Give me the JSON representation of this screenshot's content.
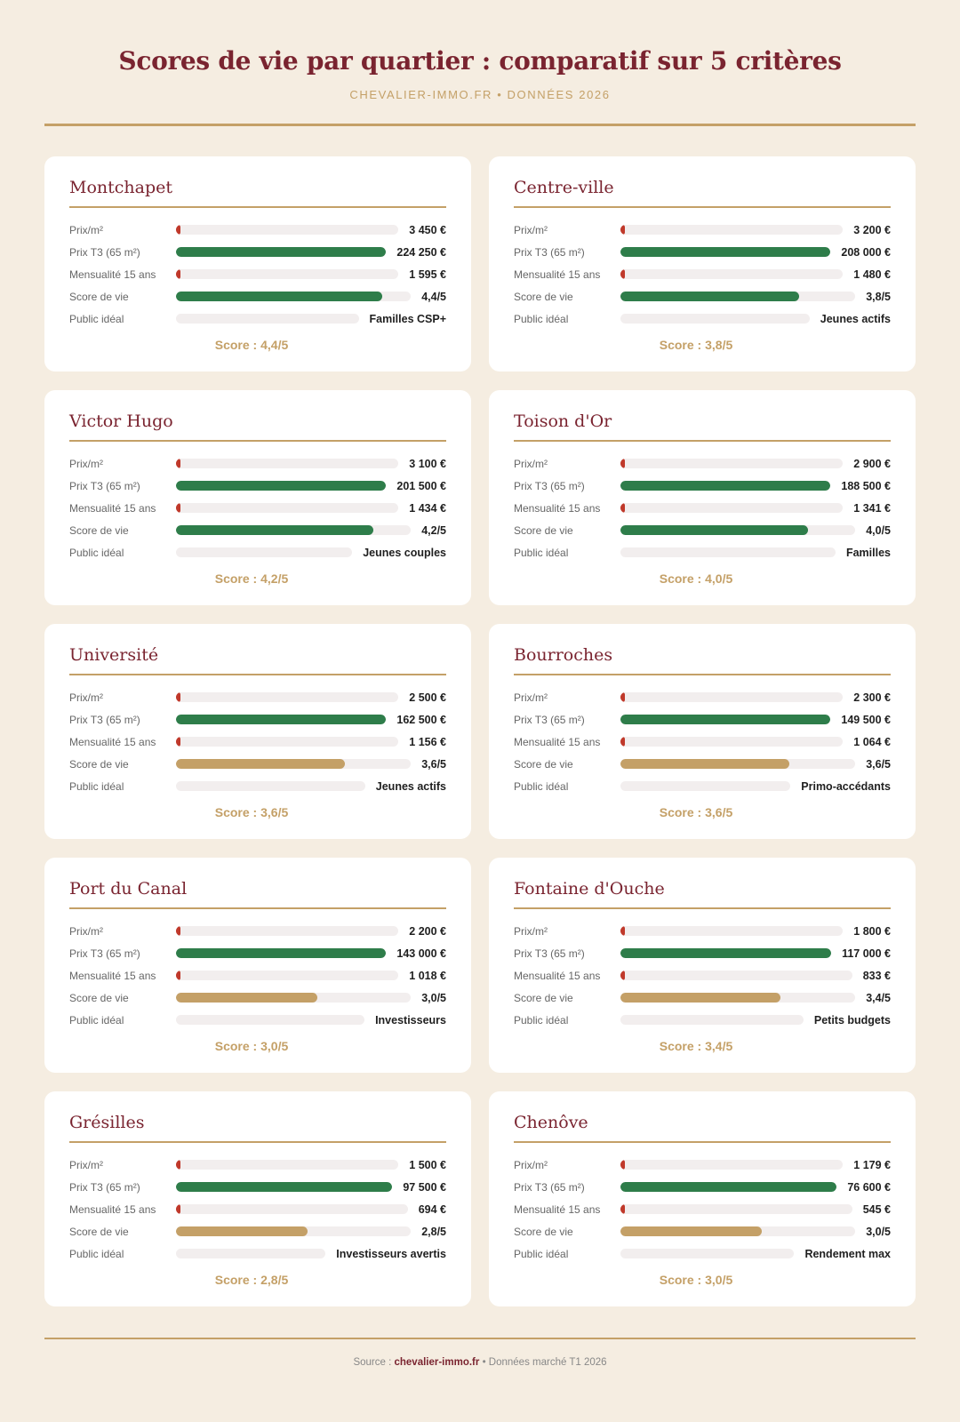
{
  "header": {
    "title": "Scores de vie par quartier : comparatif sur 5 critères",
    "subtitle": "CHEVALIER-IMMO.FR • DONNÉES 2026"
  },
  "labels": {
    "prix_m2": "Prix/m²",
    "prix_t3": "Prix T3 (65 m²)",
    "mensualite": "Mensualité 15 ans",
    "score_vie": "Score de vie",
    "public": "Public idéal"
  },
  "colors": {
    "accent_gold": "#c4a067",
    "burgundy": "#7a2430",
    "green": "#2e7d4a",
    "red": "#c0392b"
  },
  "chart_data": {
    "type": "table",
    "title": "Scores de vie par quartier : comparatif sur 5 critères",
    "score_max": 5,
    "districts": [
      {
        "name": "Montchapet",
        "prix_m2": 3450,
        "prix_m2_label": "3 450 €",
        "prix_t3": 224250,
        "prix_t3_label": "224 250 €",
        "mensualite": 1595,
        "mensualite_label": "1 595 €",
        "score": 4.4,
        "score_label": "4,4/5",
        "public": "Familles CSP+",
        "score_text": "Score : 4,4/5"
      },
      {
        "name": "Centre-ville",
        "prix_m2": 3200,
        "prix_m2_label": "3 200 €",
        "prix_t3": 208000,
        "prix_t3_label": "208 000 €",
        "mensualite": 1480,
        "mensualite_label": "1 480 €",
        "score": 3.8,
        "score_label": "3,8/5",
        "public": "Jeunes actifs",
        "score_text": "Score : 3,8/5"
      },
      {
        "name": "Victor Hugo",
        "prix_m2": 3100,
        "prix_m2_label": "3 100 €",
        "prix_t3": 201500,
        "prix_t3_label": "201 500 €",
        "mensualite": 1434,
        "mensualite_label": "1 434 €",
        "score": 4.2,
        "score_label": "4,2/5",
        "public": "Jeunes couples",
        "score_text": "Score : 4,2/5"
      },
      {
        "name": "Toison d'Or",
        "prix_m2": 2900,
        "prix_m2_label": "2 900 €",
        "prix_t3": 188500,
        "prix_t3_label": "188 500 €",
        "mensualite": 1341,
        "mensualite_label": "1 341 €",
        "score": 4.0,
        "score_label": "4,0/5",
        "public": "Familles",
        "score_text": "Score : 4,0/5"
      },
      {
        "name": "Université",
        "prix_m2": 2500,
        "prix_m2_label": "2 500 €",
        "prix_t3": 162500,
        "prix_t3_label": "162 500 €",
        "mensualite": 1156,
        "mensualite_label": "1 156 €",
        "score": 3.6,
        "score_label": "3,6/5",
        "public": "Jeunes actifs",
        "score_text": "Score : 3,6/5"
      },
      {
        "name": "Bourroches",
        "prix_m2": 2300,
        "prix_m2_label": "2 300 €",
        "prix_t3": 149500,
        "prix_t3_label": "149 500 €",
        "mensualite": 1064,
        "mensualite_label": "1 064 €",
        "score": 3.6,
        "score_label": "3,6/5",
        "public": "Primo-accédants",
        "score_text": "Score : 3,6/5"
      },
      {
        "name": "Port du Canal",
        "prix_m2": 2200,
        "prix_m2_label": "2 200 €",
        "prix_t3": 143000,
        "prix_t3_label": "143 000 €",
        "mensualite": 1018,
        "mensualite_label": "1 018 €",
        "score": 3.0,
        "score_label": "3,0/5",
        "public": "Investisseurs",
        "score_text": "Score : 3,0/5"
      },
      {
        "name": "Fontaine d'Ouche",
        "prix_m2": 1800,
        "prix_m2_label": "1 800 €",
        "prix_t3": 117000,
        "prix_t3_label": "117 000 €",
        "mensualite": 833,
        "mensualite_label": "833 €",
        "score": 3.4,
        "score_label": "3,4/5",
        "public": "Petits budgets",
        "score_text": "Score : 3,4/5"
      },
      {
        "name": "Grésilles",
        "prix_m2": 1500,
        "prix_m2_label": "1 500 €",
        "prix_t3": 97500,
        "prix_t3_label": "97 500 €",
        "mensualite": 694,
        "mensualite_label": "694 €",
        "score": 2.8,
        "score_label": "2,8/5",
        "public": "Investisseurs avertis",
        "score_text": "Score : 2,8/5"
      },
      {
        "name": "Chenôve",
        "prix_m2": 1179,
        "prix_m2_label": "1 179 €",
        "prix_t3": 76600,
        "prix_t3_label": "76 600 €",
        "mensualite": 545,
        "mensualite_label": "545 €",
        "score": 3.0,
        "score_label": "3,0/5",
        "public": "Rendement max",
        "score_text": "Score : 3,0/5"
      }
    ]
  },
  "footer": {
    "prefix": "Source :",
    "brand": "chevalier-immo.fr",
    "suffix": "• Données marché T1 2026"
  }
}
